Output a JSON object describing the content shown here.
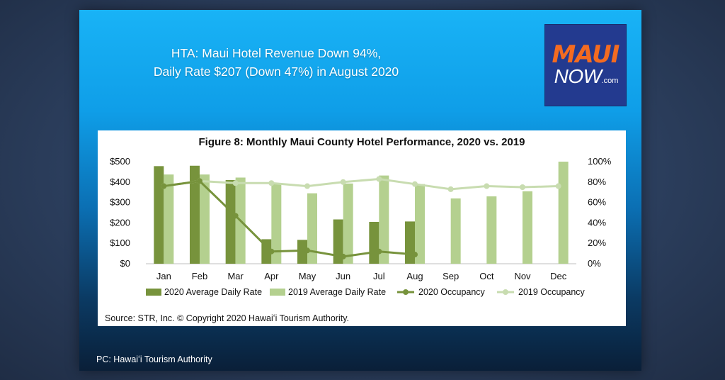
{
  "headline": {
    "line1": "HTA: Maui Hotel Revenue Down 94%,",
    "line2": "Daily Rate $207 (Down 47%) in August 2020"
  },
  "logo": {
    "maui": "MAUI",
    "now": "NOW",
    "com": ".com"
  },
  "source": "Source: STR, Inc. © Copyright 2020 Hawaiʻi Tourism Authority.",
  "photo_credit": "PC: Hawaiʻi Tourism Authority",
  "colors": {
    "adr_2020": "#77933c",
    "adr_2019": "#b4d08f",
    "occ_2020": "#77933c",
    "occ_2019": "#c8dcb0"
  },
  "chart_data": {
    "type": "bar",
    "title": "Figure 8: Monthly Maui County Hotel Performance, 2020 vs. 2019",
    "categories": [
      "Jan",
      "Feb",
      "Mar",
      "Apr",
      "May",
      "Jun",
      "Jul",
      "Aug",
      "Sep",
      "Oct",
      "Nov",
      "Dec"
    ],
    "ylim_left": [
      0,
      500
    ],
    "yticks_left": [
      "$0",
      "$100",
      "$200",
      "$300",
      "$400",
      "$500"
    ],
    "ylim_right": [
      0,
      100
    ],
    "yticks_right": [
      "0%",
      "20%",
      "40%",
      "60%",
      "80%",
      "100%"
    ],
    "legend_position": "bottom",
    "series": [
      {
        "name": "2020 Average Daily Rate",
        "type": "bar",
        "axis": "left",
        "values": [
          478,
          480,
          410,
          120,
          117,
          217,
          205,
          207,
          null,
          null,
          null,
          null
        ]
      },
      {
        "name": "2019 Average Daily Rate",
        "type": "bar",
        "axis": "left",
        "values": [
          437,
          437,
          422,
          390,
          345,
          393,
          432,
          390,
          320,
          330,
          355,
          500
        ]
      },
      {
        "name": "2020 Occupancy",
        "type": "line",
        "axis": "right",
        "values": [
          76,
          81,
          47,
          12,
          13,
          7,
          12,
          9,
          null,
          null,
          null,
          null
        ]
      },
      {
        "name": "2019 Occupancy",
        "type": "line",
        "axis": "right",
        "values": [
          76,
          81,
          79,
          79,
          76,
          80,
          83,
          78,
          73,
          76,
          75,
          76
        ]
      }
    ]
  }
}
